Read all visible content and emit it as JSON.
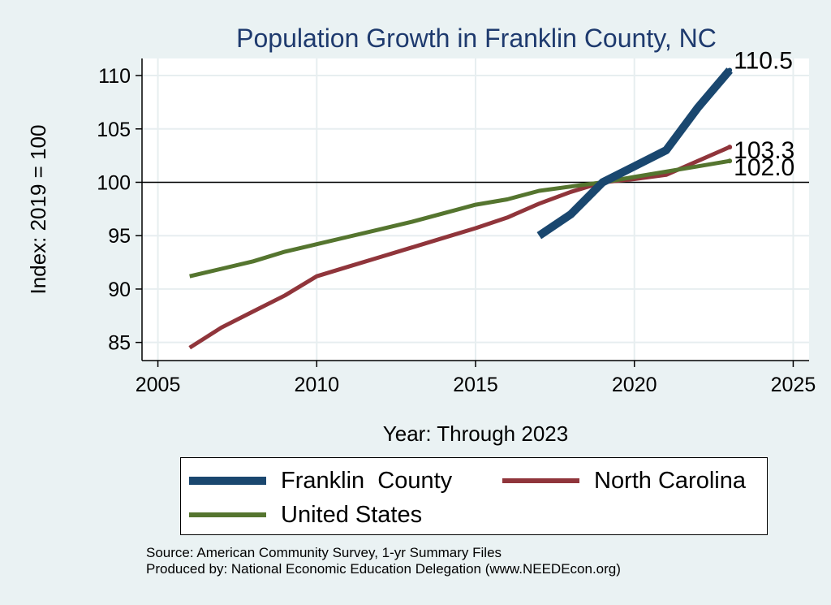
{
  "chart_data": {
    "type": "line",
    "title": "Population Growth in Franklin County, NC",
    "xlabel": "Year: Through 2023",
    "ylabel": "Index: 2019 = 100",
    "xlim": [
      2004.5,
      2025.5
    ],
    "ylim": [
      83.3,
      111.6
    ],
    "x_ticks": [
      2005,
      2010,
      2015,
      2020,
      2025
    ],
    "y_ticks": [
      85,
      90,
      95,
      100,
      105,
      110
    ],
    "grid": true,
    "reference_line": 100,
    "legend_position": "bottom",
    "series": [
      {
        "name": "Franklin  County",
        "color": "#1a476f",
        "x": [
          2017,
          2018,
          2019,
          2020,
          2021,
          2022,
          2023
        ],
        "values": [
          95.0,
          97.0,
          100.0,
          101.5,
          103.0,
          107.0,
          110.5
        ],
        "end_label": "110.5"
      },
      {
        "name": "North Carolina",
        "color": "#90353b",
        "x": [
          2006,
          2007,
          2008,
          2009,
          2010,
          2011,
          2012,
          2013,
          2014,
          2015,
          2016,
          2017,
          2018,
          2019,
          2020,
          2021,
          2022,
          2023
        ],
        "values": [
          84.5,
          86.4,
          87.9,
          89.4,
          91.2,
          92.1,
          93.0,
          93.9,
          94.8,
          95.7,
          96.7,
          98.0,
          99.1,
          100.0,
          100.3,
          100.7,
          102.0,
          103.3
        ],
        "end_label": "103.3"
      },
      {
        "name": "United States",
        "color": "#55752f",
        "x": [
          2006,
          2007,
          2008,
          2009,
          2010,
          2011,
          2012,
          2013,
          2014,
          2015,
          2016,
          2017,
          2018,
          2019,
          2020,
          2021,
          2022,
          2023
        ],
        "values": [
          91.2,
          91.9,
          92.6,
          93.5,
          94.2,
          94.9,
          95.6,
          96.3,
          97.1,
          97.9,
          98.4,
          99.2,
          99.6,
          100.0,
          100.5,
          101.0,
          101.5,
          102.0
        ],
        "end_label": "102.0"
      }
    ]
  },
  "source": {
    "line1": "Source: American Community Survey, 1-yr Summary Files",
    "line2": "Produced by: National Economic Education Delegation (www.NEEDEcon.org)"
  }
}
